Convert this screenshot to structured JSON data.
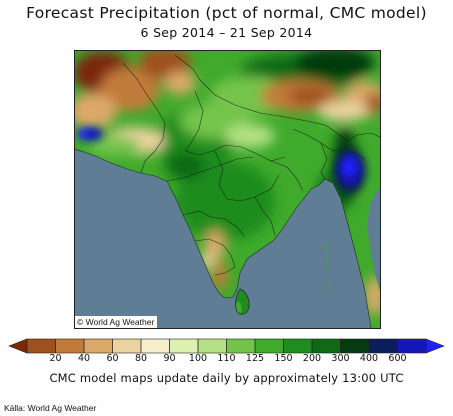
{
  "title": "Forecast Precipitation (pct of normal, CMC model)",
  "date_range": "6 Sep 2014 – 21 Sep 2014",
  "map": {
    "copyright": "© World Ag Weather",
    "ocean_color": "#5f7e95"
  },
  "legend": {
    "colors": [
      "#7a2808",
      "#a0501c",
      "#c27a3a",
      "#dca869",
      "#ecd2a0",
      "#f6efcc",
      "#dcf0b0",
      "#b4e184",
      "#74c44c",
      "#3faa2c",
      "#1e8c1e",
      "#0f6a16",
      "#063a10",
      "#0a1d5c",
      "#1418b8",
      "#2020ff"
    ],
    "tick_labels": [
      "20",
      "40",
      "60",
      "80",
      "90",
      "100",
      "110",
      "125",
      "150",
      "200",
      "300",
      "400",
      "600"
    ]
  },
  "note": "CMC model maps update daily by approximately 13:00 UTC",
  "source": "Källa: World Ag Weather"
}
